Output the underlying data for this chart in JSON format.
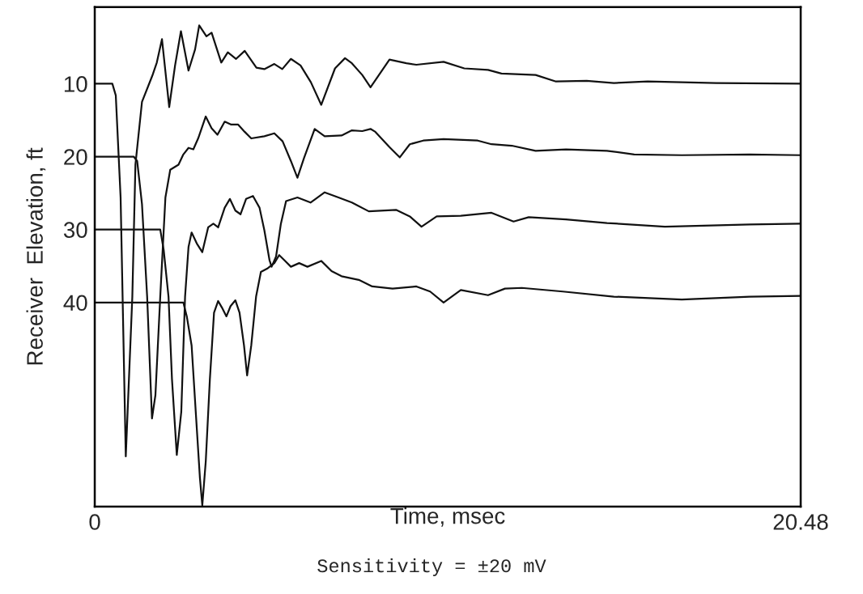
{
  "chart_data": {
    "type": "line",
    "xlabel": "Time, msec",
    "ylabel": "Receiver  Elevation, ft",
    "annotations": [
      "Sensitivity = ±20 mV"
    ],
    "xlim": [
      0,
      20.48
    ],
    "xticks": [
      0,
      20.48
    ],
    "ylim": [
      68,
      -0.5
    ],
    "yticks": [
      10,
      20,
      30,
      40
    ],
    "grid": false,
    "marker": "none",
    "line_style": "solid",
    "series": [
      {
        "color": "#111111",
        "x": [
          0,
          0.51,
          0.61,
          0.75,
          0.9,
          1.09,
          1.18,
          1.37,
          1.67,
          1.8,
          1.95,
          2.16,
          2.33,
          2.5,
          2.72,
          2.91,
          3.03,
          3.24,
          3.39,
          3.67,
          3.86,
          4.1,
          4.35,
          4.69,
          4.92,
          5.21,
          5.44,
          5.69,
          5.97,
          6.27,
          6.57,
          6.97,
          7.26,
          7.46,
          7.76,
          8.0,
          8.55,
          9.04,
          9.33,
          10.12,
          10.72,
          11.41,
          11.8,
          12.79,
          13.38,
          14.27,
          15.06,
          16.04,
          18.02,
          20.48
        ],
        "values": [
          10,
          10,
          11.6,
          25.6,
          61.1,
          39.2,
          21.1,
          12.5,
          8.9,
          7.1,
          3.9,
          13.2,
          7.5,
          2.8,
          8.2,
          5.3,
          2.0,
          3.5,
          3.0,
          7.1,
          5.7,
          6.6,
          5.5,
          7.8,
          8.0,
          7.3,
          8.0,
          6.6,
          7.5,
          9.8,
          12.9,
          7.9,
          6.5,
          7.2,
          8.8,
          10.5,
          6.7,
          7.2,
          7.4,
          7.0,
          7.9,
          8.1,
          8.6,
          8.8,
          9.7,
          9.6,
          9.9,
          9.7,
          9.9,
          10.0
        ]
      },
      {
        "color": "#111111",
        "x": [
          0,
          1.13,
          1.23,
          1.37,
          1.52,
          1.66,
          1.76,
          1.9,
          2.05,
          2.19,
          2.43,
          2.57,
          2.72,
          2.86,
          3.0,
          3.22,
          3.39,
          3.56,
          3.77,
          3.96,
          4.16,
          4.35,
          4.54,
          4.92,
          5.21,
          5.45,
          5.69,
          5.88,
          6.07,
          6.38,
          6.67,
          7.16,
          7.46,
          7.76,
          8.0,
          8.14,
          8.55,
          8.85,
          9.14,
          9.53,
          10.12,
          11.11,
          11.51,
          12.1,
          12.79,
          13.67,
          14.86,
          15.65,
          17.03,
          19.0,
          20.48
        ],
        "values": [
          20,
          20,
          20.6,
          26.5,
          39.2,
          55.9,
          52.7,
          39.2,
          25.6,
          21.8,
          21.1,
          19.7,
          18.8,
          19.0,
          17.5,
          14.5,
          16.1,
          17.0,
          15.2,
          15.6,
          15.6,
          16.6,
          17.5,
          17.2,
          16.8,
          17.9,
          20.6,
          22.9,
          20.2,
          16.2,
          17.2,
          17.1,
          16.4,
          16.5,
          16.2,
          16.6,
          18.7,
          20.1,
          18.3,
          17.8,
          17.6,
          17.8,
          18.3,
          18.5,
          19.2,
          19.0,
          19.2,
          19.7,
          19.8,
          19.7,
          19.8
        ]
      },
      {
        "color": "#111111",
        "x": [
          0,
          1.9,
          2.0,
          2.14,
          2.24,
          2.38,
          2.51,
          2.62,
          2.72,
          2.81,
          2.96,
          3.12,
          3.29,
          3.44,
          3.58,
          3.77,
          3.92,
          4.08,
          4.23,
          4.39,
          4.59,
          4.78,
          4.92,
          5.07,
          5.13,
          5.26,
          5.4,
          5.55,
          5.88,
          6.26,
          6.67,
          7.07,
          7.46,
          7.95,
          8.74,
          9.14,
          9.48,
          9.92,
          10.62,
          11.51,
          12.15,
          12.59,
          13.67,
          14.86,
          16.54,
          19.0,
          20.48
        ],
        "values": [
          30,
          30,
          32.8,
          39.2,
          50.5,
          60.9,
          55.0,
          39.2,
          32.4,
          30.4,
          31.9,
          33.1,
          29.7,
          29.2,
          29.7,
          27.0,
          25.8,
          27.4,
          27.9,
          25.8,
          25.4,
          27.0,
          30.1,
          34.2,
          35.1,
          33.7,
          29.2,
          26.1,
          25.6,
          26.3,
          24.9,
          25.6,
          26.3,
          27.5,
          27.3,
          28.2,
          29.6,
          28.2,
          28.1,
          27.7,
          28.9,
          28.3,
          28.6,
          29.1,
          29.6,
          29.3,
          29.2
        ]
      },
      {
        "color": "#111111",
        "x": [
          0,
          2.57,
          2.67,
          2.81,
          2.93,
          3.05,
          3.12,
          3.22,
          3.34,
          3.46,
          3.58,
          3.69,
          3.82,
          3.94,
          4.08,
          4.2,
          4.33,
          4.42,
          4.54,
          4.68,
          4.82,
          5.02,
          5.21,
          5.35,
          5.5,
          5.69,
          5.93,
          6.17,
          6.57,
          6.87,
          7.16,
          7.66,
          8.05,
          8.64,
          9.33,
          9.73,
          10.12,
          10.62,
          11.41,
          11.9,
          12.39,
          13.58,
          15.06,
          17.03,
          19.0,
          20.48
        ],
        "values": [
          40,
          40,
          41.9,
          45.9,
          55.0,
          64.0,
          67.8,
          61.8,
          50.5,
          41.4,
          39.8,
          40.7,
          41.9,
          40.5,
          39.7,
          41.4,
          45.9,
          50.0,
          45.9,
          39.2,
          35.8,
          35.3,
          34.6,
          33.5,
          34.2,
          35.1,
          34.6,
          35.1,
          34.3,
          35.7,
          36.4,
          36.9,
          37.8,
          38.1,
          37.8,
          38.5,
          40.0,
          38.3,
          39.0,
          38.1,
          38.0,
          38.5,
          39.2,
          39.6,
          39.2,
          39.1
        ]
      }
    ]
  }
}
